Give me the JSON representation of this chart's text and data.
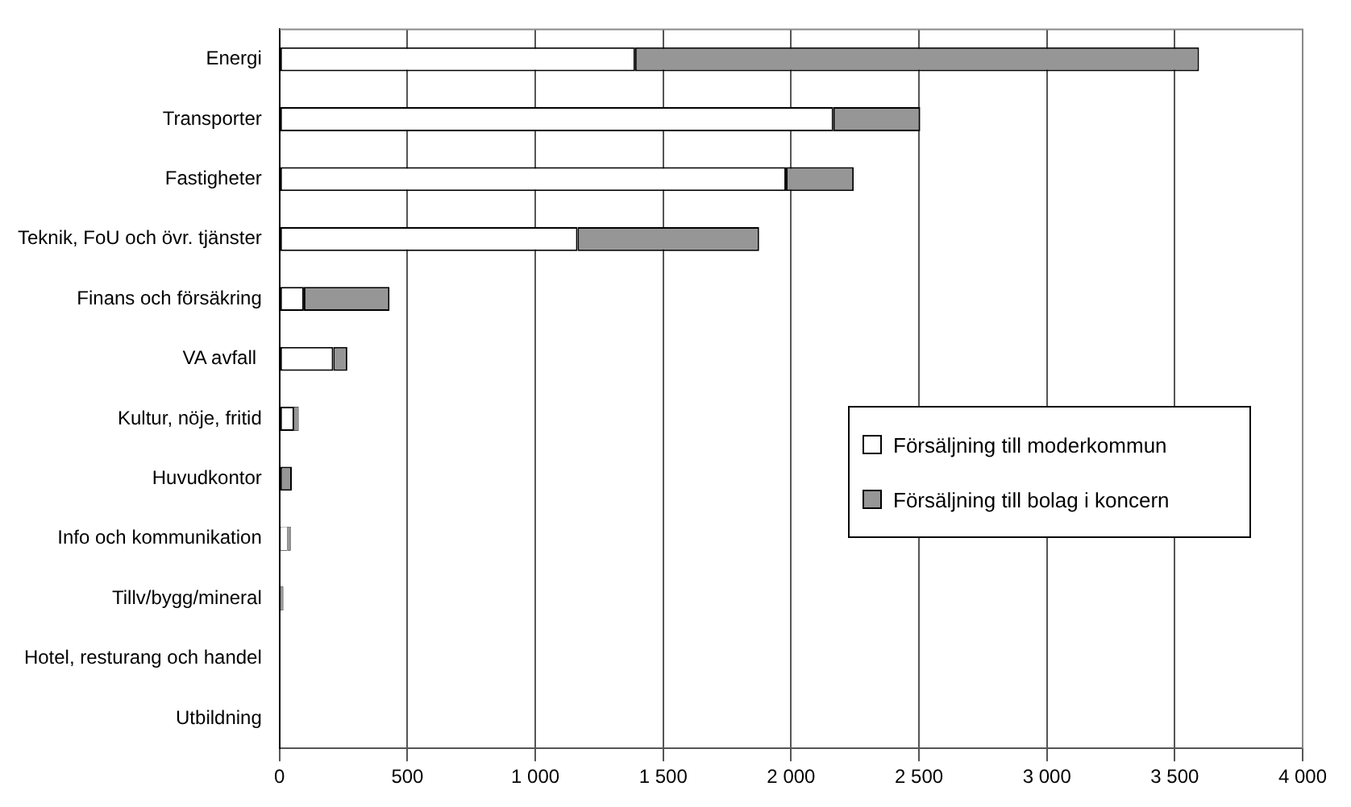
{
  "chart_data": {
    "type": "bar",
    "orientation": "horizontal",
    "stacked": true,
    "categories": [
      "Energi",
      "Transporter",
      "Fastigheter",
      "Teknik, FoU och övr. tjänster",
      "Finans och försäkring",
      "VA avfall ",
      "Kultur, nöje, fritid",
      "Huvudkontor",
      "Info och kommunikation",
      "Tillv/bygg/mineral",
      "Hotel, resturang och handel",
      "Utbildning"
    ],
    "series": [
      {
        "name": "Försäljning till moderkommun",
        "color": "#ffffff",
        "values": [
          1390,
          2165,
          1980,
          1165,
          95,
          210,
          57,
          0,
          31,
          0,
          0,
          0
        ]
      },
      {
        "name": "Försäljning till bolag i koncern",
        "color": "#969696",
        "values": [
          2205,
          340,
          265,
          710,
          335,
          55,
          18,
          48,
          13,
          15,
          0,
          0
        ]
      }
    ],
    "xlim": [
      0,
      4000
    ],
    "xticks": [
      {
        "value": 0,
        "label": "0"
      },
      {
        "value": 500,
        "label": "500"
      },
      {
        "value": 1000,
        "label": "1 000"
      },
      {
        "value": 1500,
        "label": "1 500"
      },
      {
        "value": 2000,
        "label": "2 000"
      },
      {
        "value": 2500,
        "label": "2 500"
      },
      {
        "value": 3000,
        "label": "3 000"
      },
      {
        "value": 3500,
        "label": "3 500"
      },
      {
        "value": 4000,
        "label": "4 000"
      }
    ],
    "grid": "x",
    "legend": "right"
  }
}
